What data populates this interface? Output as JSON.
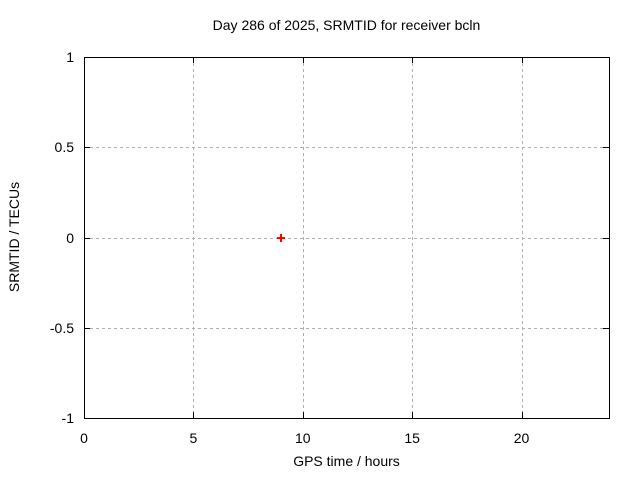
{
  "chart_data": {
    "type": "scatter",
    "title": "Day 286 of 2025, SRMTID for receiver bcln",
    "xlabel": "GPS time / hours",
    "ylabel": "SRMTID / TECUs",
    "xlim": [
      0,
      24
    ],
    "ylim": [
      -1,
      1
    ],
    "xticks": [
      0,
      5,
      10,
      15,
      20
    ],
    "xtick_labels": [
      "0",
      "5",
      "10",
      "15",
      "20"
    ],
    "yticks": [
      -1,
      -0.5,
      0,
      0.5,
      1
    ],
    "ytick_labels": [
      "-1",
      "-0.5",
      "0",
      "0.5",
      "1"
    ],
    "grid": true,
    "legend_position": "none",
    "series": [
      {
        "name": "SRMTID",
        "marker": "plus",
        "color": "#ff0000",
        "points": [
          [
            9,
            0
          ]
        ]
      }
    ],
    "colors": {
      "border": "#000000",
      "grid": "#b0b0b0",
      "background": "#ffffff",
      "text": "#000000"
    }
  }
}
